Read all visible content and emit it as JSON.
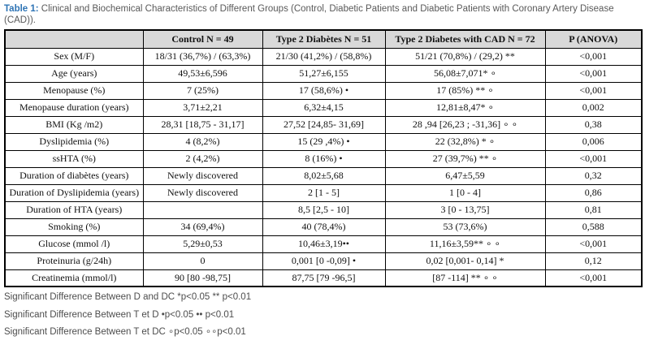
{
  "title": {
    "label": "Table 1:",
    "text": " Clinical and Biochemical Characteristics of Different Groups (Control, Diabetic Patients and Diabetic Patients with Coronary Artery Disease (CAD))."
  },
  "colors": {
    "accent_blue": "#2e74b5",
    "header_bg": "#d9d9d9",
    "border": "#000000",
    "caption_gray": "#595959"
  },
  "table": {
    "columns": [
      "",
      "Control N = 49",
      "Type 2 Diabètes N = 51",
      "Type 2 Diabetes with CAD N = 72",
      "P (ANOVA)"
    ],
    "rows": [
      [
        "Sex (M/F)",
        "18/31 (36,7%) / (63,3%)",
        "21/30 (41,2%) / (58,8%)",
        "51/21 (70,8%) / (29,2) **",
        "<0,001"
      ],
      [
        "Age (years)",
        "49,53±6,596",
        "51,27±6,155",
        "56,08±7,071* ∘",
        "<0,001"
      ],
      [
        "Menopause (%)",
        "7 (25%)",
        "17 (58,6%) •",
        "17 (85%) ** ∘",
        "<0,001"
      ],
      [
        "Menopause duration (years)",
        "3,71±2,21",
        "6,32±4,15",
        "12,81±8,47* ∘",
        "0,002"
      ],
      [
        "BMI (Kg /m2)",
        "28,31 [18,75 - 31,17]",
        "27,52 [24,85- 31,69]",
        "28 ,94 [26,23 ; -31,36] ∘ ∘",
        "0,38"
      ],
      [
        "Dyslipidemia (%)",
        "4 (8,2%)",
        "15 (29 ,4%) •",
        "22 (32,8%) * ∘",
        "0,006"
      ],
      [
        "ssHTA (%)",
        "2 (4,2%)",
        "8 (16%) •",
        "27 (39,7%) ** ∘",
        "<0,001"
      ],
      [
        "Duration of diabètes (years)",
        "Newly discovered",
        "8,02±5,68",
        "6,47±5,59",
        "0,32"
      ],
      [
        "Duration of Dyslipidemia (years)",
        "Newly discovered",
        "2 [1 - 5]",
        "1 [0 - 4]",
        "0,86"
      ],
      [
        "Duration of HTA (years)",
        "",
        "8,5 [2,5 - 10]",
        "3 [0 - 13,75]",
        "0,81"
      ],
      [
        "Smoking (%)",
        "34 (69,4%)",
        "40 (78,4%)",
        "53 (73,6%)",
        "0,588"
      ],
      [
        "Glucose (mmol /l)",
        "5,29±0,53",
        "10,46±3,19••",
        "11,16±3,59** ∘ ∘",
        "<0,001"
      ],
      [
        "Proteinuria (g/24h)",
        "0",
        "0,001 [0 -0,09] •",
        "0,02 [0,001- 0,14] *",
        "0,12"
      ],
      [
        "Creatinemia (mmol/l)",
        "90 [80 -98,75]",
        "87,75 [79 -96,5]",
        "[87 -114] ** ∘ ∘",
        "<0,001"
      ]
    ]
  },
  "footnotes": [
    "Significant Difference Between D and DC *p<0.05 ** p<0.01",
    "Significant Difference Between T et D •p<0.05 •• p<0.01",
    "Significant Difference Between T et DC ∘p<0.05 ∘∘p<0.01"
  ]
}
